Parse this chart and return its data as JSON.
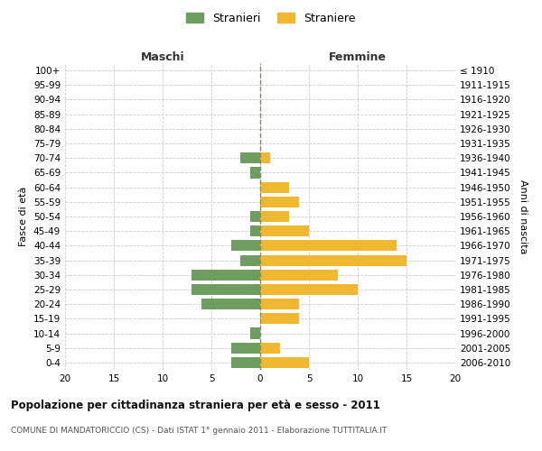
{
  "age_groups": [
    "100+",
    "95-99",
    "90-94",
    "85-89",
    "80-84",
    "75-79",
    "70-74",
    "65-69",
    "60-64",
    "55-59",
    "50-54",
    "45-49",
    "40-44",
    "35-39",
    "30-34",
    "25-29",
    "20-24",
    "15-19",
    "10-14",
    "5-9",
    "0-4"
  ],
  "birth_years": [
    "≤ 1910",
    "1911-1915",
    "1916-1920",
    "1921-1925",
    "1926-1930",
    "1931-1935",
    "1936-1940",
    "1941-1945",
    "1946-1950",
    "1951-1955",
    "1956-1960",
    "1961-1965",
    "1966-1970",
    "1971-1975",
    "1976-1980",
    "1981-1985",
    "1986-1990",
    "1991-1995",
    "1996-2000",
    "2001-2005",
    "2006-2010"
  ],
  "maschi": [
    0,
    0,
    0,
    0,
    0,
    0,
    2,
    1,
    0,
    0,
    1,
    1,
    3,
    2,
    7,
    7,
    6,
    0,
    1,
    3,
    3
  ],
  "femmine": [
    0,
    0,
    0,
    0,
    0,
    0,
    1,
    0,
    3,
    4,
    3,
    5,
    14,
    15,
    8,
    10,
    4,
    4,
    0,
    2,
    5
  ],
  "color_maschi": "#6e9e5f",
  "color_femmine": "#f0b830",
  "background_color": "#ffffff",
  "grid_color": "#cccccc",
  "title": "Popolazione per cittadinanza straniera per età e sesso - 2011",
  "subtitle": "COMUNE DI MANDATORICCIO (CS) - Dati ISTAT 1° gennaio 2011 - Elaborazione TUTTITALIA.IT",
  "xlabel_left": "Maschi",
  "xlabel_right": "Femmine",
  "ylabel_left": "Fasce di età",
  "ylabel_right": "Anni di nascita",
  "legend_maschi": "Stranieri",
  "legend_femmine": "Straniere",
  "xlim": 20,
  "bar_height": 0.75
}
